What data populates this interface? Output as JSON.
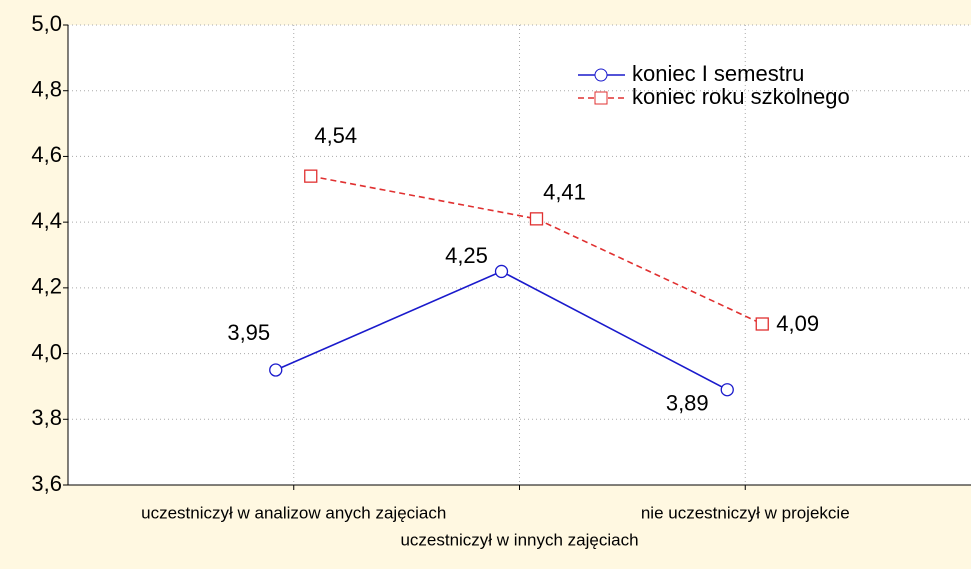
{
  "chart_data": {
    "type": "line",
    "categories": [
      "uczestniczył w  analizow anych zajęciach",
      "uczestniczył w  innych zajęciach",
      "nie uczestniczył w  projekcie"
    ],
    "series": [
      {
        "name": "koniec I semestru",
        "color": "#1a1acc",
        "marker": "circle",
        "dash": false,
        "values": [
          3.95,
          4.25,
          3.89
        ],
        "value_labels": [
          "3,95",
          "4,25",
          "3,89"
        ]
      },
      {
        "name": "koniec roku szkolnego",
        "color": "#e03030",
        "marker": "square",
        "dash": true,
        "values": [
          4.54,
          4.41,
          4.09
        ],
        "value_labels": [
          "4,54",
          "4,41",
          "4,09"
        ]
      }
    ],
    "ylim": [
      3.6,
      5.0
    ],
    "yticks": [
      {
        "value": 3.6,
        "label": "3,6"
      },
      {
        "value": 3.8,
        "label": "3,8"
      },
      {
        "value": 4.0,
        "label": "4,0"
      },
      {
        "value": 4.2,
        "label": "4,2"
      },
      {
        "value": 4.4,
        "label": "4,4"
      },
      {
        "value": 4.6,
        "label": "4,6"
      },
      {
        "value": 4.8,
        "label": "4,8"
      },
      {
        "value": 5.0,
        "label": "5,0"
      }
    ],
    "grid": true,
    "legend": "top-right"
  }
}
